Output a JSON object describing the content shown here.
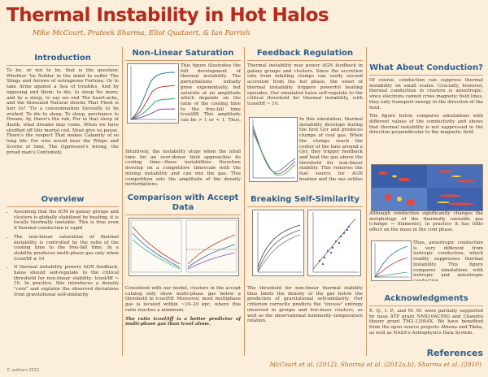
{
  "title": "Thermal Instability in Hot Halos",
  "authors": "Mike McCourt, Prateek Sharma, Eliot Quataert, & Ian Parrish",
  "introduction": {
    "heading": "Introduction",
    "body": "To be, or not to be, that is the question: Whether 'tis Nobler in the mind to suffer The Slings and Arrows of outrageous Fortune, Or to take Arms against a Sea of troubles, And by opposing end them: to die, to sleep No more; and by a sleep, to say we end The heart-ache, and the thousand Natural shocks That Flesh is heir to? 'Tis a consummation Devoutly to be wished. To die to sleep, To sleep, perchance to Dream; Ay, there's the rub, For in that sleep of death, what dreams may come, When we have shuffled off this mortal coil, Must give us pause. There's the respect That makes Calamity of so long life: For who would bear the Whips and Scorns of time, The Oppressor's wrong, the proud man's Contumely,"
  },
  "overview": {
    "heading": "Overview",
    "items": [
      "Assuming that the ICM in galaxy groups and clusters is globally stabilized by heating, it is locally thermally unstable. This is true even if thermal conduction is rapid",
      "The non-linear saturation of thermal instability is controlled by the ratio of the cooling time to the free-fall time. In a stability produces multi-phase gas only when tcool/tff ≲ 10",
      "If thermal instability powers AGN feedback, halos should self-regulate to the critical threshold for non-linear stability: tcool/tff ~ 10. In practice, this introduces a density \"core\" and explains the observed deviations from gravitational self-similarity"
    ]
  },
  "nonlinear": {
    "heading": "Non-Linear Saturation",
    "p1": "This figure illustrates the full development of thermal instability. The perturbations initially grow exponentially, but saturate at an amplitude which depends on the ratio of the cooling time to the free-fall time tcool/tff. This amplitude can be > 1 or < 1. Thus, linear thermal instability need not produce multi-phase gas.",
    "p2": "Intuitively, the instability stops when the infall time for an over-dense blob approaches its cooling time—these instabilities therefore develop on a competitive timescale with the mixing instability and can mix the gas. This competition sets the amplitude of the density perturbations."
  },
  "comparison": {
    "heading": "Comparison with Accept Data",
    "p1": "Consistent with our model, clusters in the accept catalog only show multi-phase gas below a threshold in tcool/tff. Moreover, most multiphase gas is located within ~10–20 kpc, where this ratio reaches a minimum.",
    "p2": "The ratio tcool/tff is a better predictor of multi-phase gas than tcool alone."
  },
  "feedback": {
    "heading": "Feedback Regulation",
    "p1": "Thermal instability may power AGN feedback in galaxy groups and clusters. Since the accretion rate from infalling clumps can vastly exceed accretion from the hot phase, the onset of thermal instability triggers powerful heating episodes. Our simulated halos self-regulate to the critical threshold for thermal instability, with tcool/tff ~ 10.",
    "p2": "In this simulation, thermal instability develops during the first Gyr and produces clumps of cool gas. When the clumps reach the center of the halo around a Gyr, they trigger feedback and heat the gas above the threshold for non-linear stability. This removes the fuel source for AGN heating and the gas settles into a quasi-equilibrium."
  },
  "selfsim": {
    "heading": "Breaking Self-Similarity",
    "p1": "The threshold for non-linear thermal stability thus limits the density of the gas below the prediction of gravitational self-similarity. Our criterion correctly predicts the \"excess\" entropy observed in groups and low-mass clusters, as well as the observational luminosity–temperature relation."
  },
  "conduction": {
    "heading": "What About Conduction?",
    "p1": "Of course, conduction can suppress thermal instability on small scales. Crucially, however, thermal conduction in clusters is anisotropic: since electrons cannot cross magnetic field lines, they only transport energy in the direction of the field.",
    "p2": "The figure below compares simulations with different values of the conductivity and shows that thermal instability is not suppressed in the direction perpendicular to the magnetic field.",
    "p3": "Although conduction significantly changes the morphology of the thermally unstable gas (clumps → filaments), in practice it has little effect on the mass in the cold phase.",
    "p4": "Thus, anisotropic conduction is very different from isotropic conduction, which readily suppresses thermal instability. This figure compares simulations with isotropic and anisotropic conduction."
  },
  "acknowledgments": {
    "heading": "Acknowledgments",
    "body": "E. Q., I. P., and M. M. were partially supported by nasa ATP grant NNX10AC95G and Chandra theory grant TM2-13004X. We have benefited from the open source projects Athena and Tikha, as well as NASA's Astrophysics Data System."
  },
  "references": {
    "heading": "References",
    "body": "McCourt et al. (2012), Sharma et al. (2012a,b), Sharma et al. (2010)"
  },
  "footer": "© authors 2012",
  "colors": {
    "title": "#b42a1c",
    "heading": "#2f5f8a",
    "background": "#fbeeda",
    "accent": "#b5651d"
  }
}
